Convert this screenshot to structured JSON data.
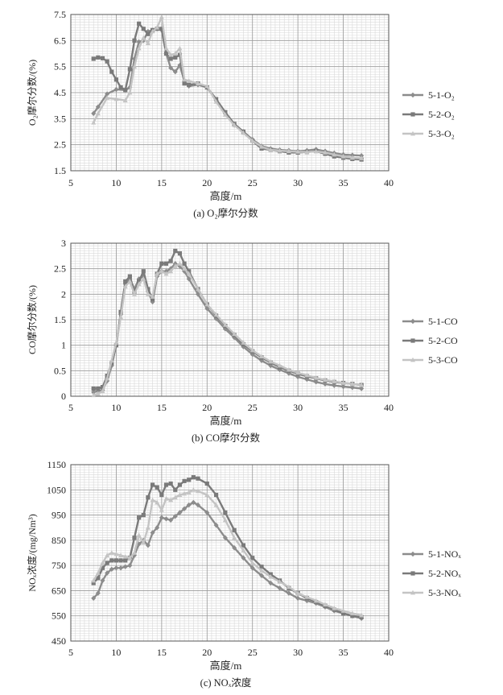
{
  "chart_data": [
    {
      "type": "line",
      "caption": "(a) O₂摩尔分数",
      "title": "",
      "xlabel": "高度/m",
      "ylabel": "O₂摩尔分数/(%)",
      "xlim": [
        5,
        40
      ],
      "ylim": [
        1.5,
        7.5
      ],
      "xticks": [
        "5",
        "10",
        "15",
        "20",
        "25",
        "30",
        "35",
        "40"
      ],
      "yticks": [
        "1.5",
        "2.5",
        "3.5",
        "4.5",
        "5.5",
        "6.5",
        "7.5"
      ],
      "series": [
        {
          "name": "5-1-O₂",
          "color": "#8c8c8c",
          "marker": "diamond",
          "x": [
            7.5,
            8,
            9,
            10,
            11,
            11.5,
            12,
            12.5,
            13,
            13.5,
            14,
            14.5,
            15,
            15.5,
            16,
            16.5,
            17,
            17.5,
            18,
            19,
            20,
            21,
            22,
            23,
            24,
            25,
            26,
            27,
            28,
            29,
            30,
            31,
            32,
            33,
            34,
            35,
            36,
            37
          ],
          "y": [
            3.7,
            3.95,
            4.45,
            4.62,
            4.6,
            4.7,
            5.8,
            6.45,
            6.5,
            6.85,
            6.9,
            6.95,
            6.9,
            6.0,
            5.45,
            5.3,
            5.55,
            4.95,
            4.75,
            4.8,
            4.7,
            4.2,
            3.7,
            3.25,
            3.0,
            2.7,
            2.45,
            2.35,
            2.3,
            2.28,
            2.25,
            2.28,
            2.32,
            2.25,
            2.18,
            2.12,
            2.1,
            2.08
          ]
        },
        {
          "name": "5-2-O₂",
          "color": "#7a7a7a",
          "marker": "square",
          "x": [
            7.5,
            8,
            8.5,
            9,
            9.5,
            10,
            10.5,
            11,
            11.5,
            12,
            12.5,
            13,
            13.5,
            14,
            14.5,
            15,
            15.5,
            16,
            16.5,
            17,
            17.5,
            18,
            19,
            20,
            21,
            22,
            23,
            24,
            25,
            26,
            27,
            28,
            29,
            30,
            31,
            32,
            33,
            34,
            35,
            36,
            37
          ],
          "y": [
            5.8,
            5.85,
            5.82,
            5.7,
            5.3,
            5.0,
            4.7,
            4.6,
            5.4,
            6.5,
            7.15,
            6.95,
            6.75,
            6.9,
            6.95,
            6.95,
            6.0,
            5.8,
            5.85,
            5.95,
            4.85,
            4.8,
            4.85,
            4.7,
            4.25,
            3.75,
            3.3,
            3.0,
            2.65,
            2.35,
            2.3,
            2.25,
            2.2,
            2.2,
            2.22,
            2.25,
            2.15,
            2.05,
            2.0,
            1.95,
            1.93
          ]
        },
        {
          "name": "5-3-O₂",
          "color": "#c4c4c4",
          "marker": "triangle",
          "x": [
            7.5,
            8,
            9,
            10,
            11,
            11.5,
            12,
            12.5,
            13,
            13.5,
            14,
            14.5,
            15,
            15.5,
            16,
            16.5,
            17,
            17.5,
            18,
            19,
            20,
            21,
            22,
            23,
            24,
            25,
            26,
            27,
            28,
            29,
            30,
            31,
            32,
            33,
            34,
            35,
            36,
            37
          ],
          "y": [
            3.35,
            3.7,
            4.3,
            4.25,
            4.2,
            4.5,
            5.5,
            6.2,
            6.6,
            6.4,
            6.85,
            7.0,
            7.4,
            6.2,
            5.95,
            6.0,
            6.2,
            5.0,
            4.95,
            4.85,
            4.75,
            4.15,
            3.65,
            3.25,
            2.95,
            2.65,
            2.42,
            2.3,
            2.27,
            2.25,
            2.23,
            2.22,
            2.24,
            2.2,
            2.12,
            2.05,
            2.0,
            1.98
          ]
        }
      ]
    },
    {
      "type": "line",
      "caption": "(b) CO摩尔分数",
      "title": "",
      "xlabel": "高度/m",
      "ylabel": "CO摩尔分数/(%)",
      "xlim": [
        5,
        40
      ],
      "ylim": [
        0,
        3
      ],
      "xticks": [
        "5",
        "10",
        "15",
        "20",
        "25",
        "30",
        "35",
        "40"
      ],
      "yticks": [
        "0",
        "0.5",
        "1",
        "1.5",
        "2",
        "2.5",
        "3"
      ],
      "series": [
        {
          "name": "5-1-CO",
          "color": "#8c8c8c",
          "marker": "diamond",
          "x": [
            7.5,
            8,
            8.5,
            9,
            9.5,
            10,
            10.5,
            11,
            11.5,
            12,
            12.5,
            13,
            13.5,
            14,
            14.5,
            15,
            15.5,
            16,
            16.5,
            17,
            17.5,
            18,
            19,
            20,
            21,
            22,
            23,
            24,
            25,
            26,
            27,
            28,
            29,
            30,
            31,
            32,
            33,
            34,
            35,
            36,
            37
          ],
          "y": [
            0.08,
            0.1,
            0.12,
            0.3,
            0.6,
            1.0,
            1.6,
            2.2,
            2.3,
            2.1,
            2.3,
            2.35,
            2.05,
            1.85,
            2.35,
            2.45,
            2.45,
            2.5,
            2.6,
            2.55,
            2.45,
            2.3,
            2.0,
            1.72,
            1.52,
            1.32,
            1.15,
            0.97,
            0.82,
            0.7,
            0.6,
            0.52,
            0.45,
            0.38,
            0.33,
            0.28,
            0.24,
            0.21,
            0.19,
            0.17,
            0.15
          ]
        },
        {
          "name": "5-2-CO",
          "color": "#7a7a7a",
          "marker": "square",
          "x": [
            7.5,
            8,
            8.5,
            9,
            9.5,
            10,
            10.5,
            11,
            11.5,
            12,
            12.5,
            13,
            13.5,
            14,
            14.5,
            15,
            15.5,
            16,
            16.5,
            17,
            17.5,
            18,
            19,
            20,
            21,
            22,
            23,
            24,
            25,
            26,
            27,
            28,
            29,
            30,
            31,
            32,
            33,
            34,
            35,
            36,
            37
          ],
          "y": [
            0.15,
            0.15,
            0.18,
            0.4,
            0.65,
            1.0,
            1.65,
            2.25,
            2.35,
            2.05,
            2.25,
            2.45,
            2.1,
            1.9,
            2.4,
            2.6,
            2.6,
            2.65,
            2.85,
            2.8,
            2.6,
            2.45,
            2.1,
            1.8,
            1.58,
            1.38,
            1.2,
            1.02,
            0.88,
            0.76,
            0.66,
            0.57,
            0.5,
            0.44,
            0.39,
            0.35,
            0.31,
            0.28,
            0.26,
            0.24,
            0.22
          ]
        },
        {
          "name": "5-3-CO",
          "color": "#c4c4c4",
          "marker": "triangle",
          "x": [
            7.5,
            8,
            8.5,
            9,
            9.5,
            10,
            10.5,
            11,
            11.5,
            12,
            12.5,
            13,
            13.5,
            14,
            14.5,
            15,
            15.5,
            16,
            16.5,
            17,
            17.5,
            18,
            19,
            20,
            21,
            22,
            23,
            24,
            25,
            26,
            27,
            28,
            29,
            30,
            31,
            32,
            33,
            34,
            35,
            36,
            37
          ],
          "y": [
            0.02,
            0.05,
            0.1,
            0.35,
            0.7,
            1.05,
            1.55,
            2.15,
            2.25,
            2.0,
            2.2,
            2.3,
            2.0,
            1.95,
            2.4,
            2.45,
            2.4,
            2.45,
            2.55,
            2.6,
            2.5,
            2.4,
            2.1,
            1.8,
            1.6,
            1.4,
            1.22,
            1.05,
            0.9,
            0.78,
            0.68,
            0.6,
            0.52,
            0.46,
            0.41,
            0.36,
            0.32,
            0.29,
            0.26,
            0.24,
            0.22
          ]
        }
      ]
    },
    {
      "type": "line",
      "caption": "(c) NOₓ浓度",
      "title": "",
      "xlabel": "高度/m",
      "ylabel": "NOₓ浓度/(mg/Nm³)",
      "xlim": [
        5,
        40
      ],
      "ylim": [
        450,
        1150
      ],
      "xticks": [
        "5",
        "10",
        "15",
        "20",
        "25",
        "30",
        "35",
        "40"
      ],
      "yticks": [
        "450",
        "550",
        "650",
        "750",
        "850",
        "950",
        "1050",
        "1150"
      ],
      "series": [
        {
          "name": "5-1-NOₓ",
          "color": "#8c8c8c",
          "marker": "diamond",
          "x": [
            7.5,
            8,
            8.5,
            9,
            9.5,
            10,
            10.5,
            11,
            11.5,
            12,
            12.5,
            13,
            13.5,
            14,
            14.5,
            15,
            15.5,
            16,
            16.5,
            17,
            17.5,
            18,
            18.5,
            19,
            20,
            21,
            22,
            23,
            24,
            25,
            26,
            27,
            28,
            29,
            30,
            31,
            32,
            33,
            34,
            35,
            36,
            37
          ],
          "y": [
            620,
            640,
            690,
            720,
            735,
            740,
            740,
            745,
            750,
            790,
            835,
            850,
            830,
            880,
            900,
            940,
            935,
            930,
            945,
            960,
            975,
            990,
            1000,
            990,
            960,
            910,
            860,
            820,
            780,
            740,
            710,
            680,
            660,
            640,
            620,
            610,
            600,
            585,
            570,
            560,
            550,
            540
          ]
        },
        {
          "name": "5-2-NOₓ",
          "color": "#7a7a7a",
          "marker": "square",
          "x": [
            7.5,
            8,
            8.5,
            9,
            9.5,
            10,
            10.5,
            11,
            11.5,
            12,
            12.5,
            13,
            13.5,
            14,
            14.5,
            15,
            15.5,
            16,
            16.5,
            17,
            17.5,
            18,
            18.5,
            19,
            20,
            21,
            22,
            23,
            24,
            25,
            26,
            27,
            28,
            29,
            30,
            31,
            32,
            33,
            34,
            35,
            36,
            37
          ],
          "y": [
            680,
            700,
            740,
            760,
            770,
            770,
            770,
            770,
            780,
            860,
            940,
            950,
            1020,
            1070,
            1060,
            1030,
            1070,
            1075,
            1050,
            1070,
            1085,
            1090,
            1100,
            1095,
            1075,
            1030,
            960,
            890,
            830,
            780,
            745,
            715,
            690,
            660,
            640,
            620,
            605,
            590,
            575,
            560,
            550,
            545
          ]
        },
        {
          "name": "5-3-NOₓ",
          "color": "#c4c4c4",
          "marker": "triangle",
          "x": [
            7.5,
            8,
            8.5,
            9,
            9.5,
            10,
            10.5,
            11,
            11.5,
            12,
            12.5,
            13,
            13.5,
            14,
            14.5,
            15,
            15.5,
            16,
            16.5,
            17,
            17.5,
            18,
            18.5,
            19,
            20,
            21,
            22,
            23,
            24,
            25,
            26,
            27,
            28,
            29,
            30,
            31,
            32,
            33,
            34,
            35,
            36,
            37
          ],
          "y": [
            690,
            720,
            760,
            790,
            800,
            795,
            790,
            785,
            780,
            800,
            870,
            840,
            900,
            1010,
            1000,
            970,
            1015,
            1010,
            1020,
            1030,
            1035,
            1040,
            1050,
            1045,
            1030,
            990,
            930,
            860,
            810,
            760,
            730,
            705,
            685,
            665,
            640,
            625,
            610,
            595,
            580,
            570,
            560,
            552
          ]
        }
      ]
    }
  ]
}
